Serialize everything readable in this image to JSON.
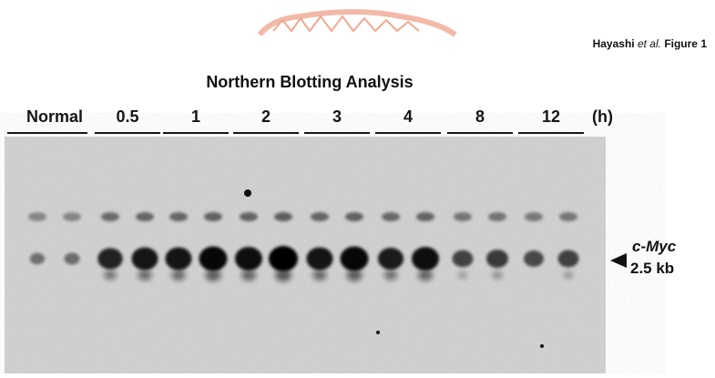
{
  "figure": {
    "credit": {
      "author": "Hayashi",
      "etal": "et al.",
      "label": "Figure 1"
    },
    "title": "Northern Blotting Analysis",
    "lanes": [
      "Normal",
      "0.5",
      "1",
      "2",
      "3",
      "4",
      "8",
      "12"
    ],
    "unit": "(h)",
    "marker": {
      "gene": "c-Myc",
      "size": "2.5 kb"
    }
  }
}
